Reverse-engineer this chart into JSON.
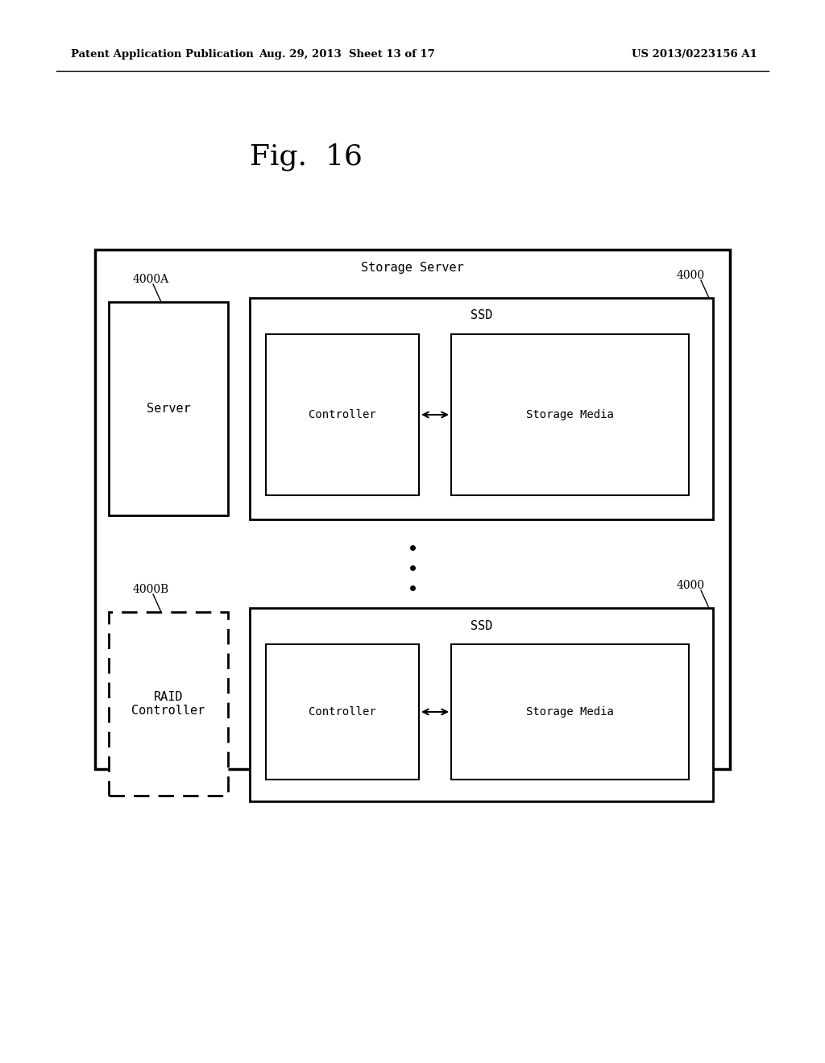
{
  "fig_width": 10.24,
  "fig_height": 13.2,
  "bg_color": "#ffffff",
  "header_left": "Patent Application Publication",
  "header_mid": "Aug. 29, 2013  Sheet 13 of 17",
  "header_right": "US 2013/0223156 A1",
  "fig_title": "Fig.  16",
  "storage_server_label": "Storage Server",
  "label_4000A": "4000A",
  "label_4000_top": "4000",
  "label_4000B": "4000B",
  "label_4000_bot": "4000",
  "label_ssd_top": "SSD",
  "label_ssd_bot": "SSD",
  "label_server": "Server",
  "label_controller_top": "Controller",
  "label_storage_media_top": "Storage Media",
  "label_raid": "RAID\nController",
  "label_controller_bot": "Controller",
  "label_storage_media_bot": "Storage Media"
}
